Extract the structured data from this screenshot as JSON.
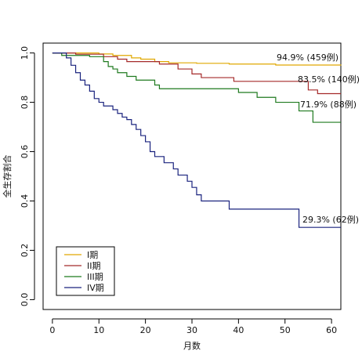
{
  "chart_data": {
    "type": "line",
    "title": "",
    "xlabel": "月数",
    "ylabel": "全生存割合",
    "xlim": [
      -2,
      62
    ],
    "ylim": [
      -0.04,
      1.04
    ],
    "x_ticks": [
      0,
      10,
      20,
      30,
      40,
      50,
      60
    ],
    "x_tick_labels": [
      "0",
      "10",
      "20",
      "30",
      "40",
      "50",
      "60"
    ],
    "y_ticks": [
      0.0,
      0.2,
      0.4,
      0.6,
      0.8,
      1.0
    ],
    "y_tick_labels": [
      "0.0",
      "0.2",
      "0.4",
      "0.6",
      "0.8",
      "1.0"
    ],
    "grid": false,
    "legend_position": "bottom-left",
    "series": [
      {
        "name": "I期",
        "color": "#e0a800",
        "points": [
          [
            0,
            1.0
          ],
          [
            8,
            1.0
          ],
          [
            10,
            0.996
          ],
          [
            13,
            0.99
          ],
          [
            17,
            0.98
          ],
          [
            19,
            0.975
          ],
          [
            22,
            0.965
          ],
          [
            25,
            0.96
          ],
          [
            31,
            0.958
          ],
          [
            38,
            0.955
          ],
          [
            48,
            0.951
          ],
          [
            62,
            0.949
          ]
        ],
        "annotation": "94.9% (459例)"
      },
      {
        "name": "II期",
        "color": "#a52a2a",
        "points": [
          [
            0,
            1.0
          ],
          [
            5,
            0.995
          ],
          [
            11,
            0.985
          ],
          [
            14,
            0.975
          ],
          [
            16,
            0.965
          ],
          [
            23,
            0.955
          ],
          [
            27,
            0.935
          ],
          [
            30,
            0.915
          ],
          [
            32,
            0.9
          ],
          [
            39,
            0.885
          ],
          [
            55,
            0.85
          ],
          [
            57,
            0.835
          ],
          [
            62,
            0.835
          ]
        ],
        "annotation": "83.5% (140例)"
      },
      {
        "name": "III期",
        "color": "#1f7a1f",
        "points": [
          [
            0,
            1.0
          ],
          [
            2,
            0.99
          ],
          [
            8,
            0.985
          ],
          [
            11,
            0.965
          ],
          [
            12,
            0.945
          ],
          [
            13,
            0.935
          ],
          [
            14,
            0.92
          ],
          [
            16,
            0.905
          ],
          [
            18,
            0.89
          ],
          [
            22,
            0.87
          ],
          [
            23,
            0.855
          ],
          [
            40,
            0.84
          ],
          [
            44,
            0.82
          ],
          [
            48,
            0.8
          ],
          [
            53,
            0.765
          ],
          [
            56,
            0.719
          ],
          [
            62,
            0.719
          ]
        ],
        "annotation": "71.9% (88例)"
      },
      {
        "name": "IV期",
        "color": "#1a237e",
        "points": [
          [
            0,
            1.0
          ],
          [
            3,
            0.98
          ],
          [
            4,
            0.95
          ],
          [
            5,
            0.92
          ],
          [
            6,
            0.89
          ],
          [
            7,
            0.87
          ],
          [
            8,
            0.845
          ],
          [
            9,
            0.815
          ],
          [
            10,
            0.8
          ],
          [
            11,
            0.785
          ],
          [
            13,
            0.77
          ],
          [
            14,
            0.755
          ],
          [
            15,
            0.74
          ],
          [
            16,
            0.73
          ],
          [
            17,
            0.71
          ],
          [
            18,
            0.69
          ],
          [
            19,
            0.665
          ],
          [
            20,
            0.64
          ],
          [
            21,
            0.6
          ],
          [
            22,
            0.58
          ],
          [
            24,
            0.555
          ],
          [
            26,
            0.53
          ],
          [
            27,
            0.505
          ],
          [
            29,
            0.48
          ],
          [
            30,
            0.455
          ],
          [
            31,
            0.425
          ],
          [
            32,
            0.4
          ],
          [
            38,
            0.367
          ],
          [
            53,
            0.293
          ],
          [
            62,
            0.293
          ]
        ],
        "annotation": "29.3% (62例)"
      }
    ]
  }
}
